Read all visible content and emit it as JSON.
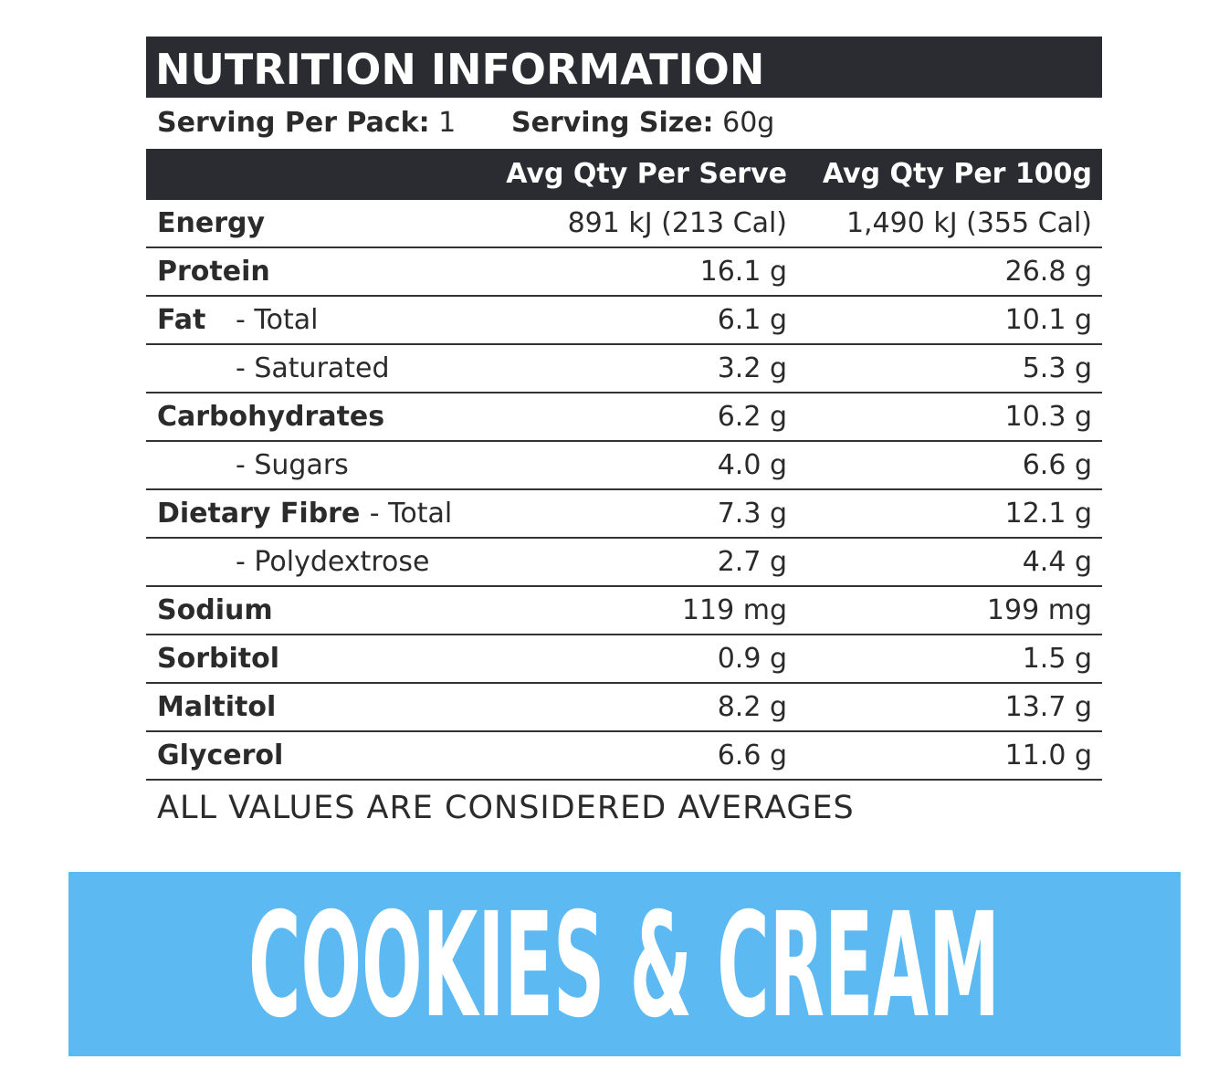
{
  "header": {
    "title": "NUTRITION INFORMATION"
  },
  "serving": {
    "per_pack_label": "Serving Per Pack:",
    "per_pack": "1",
    "size_label": "Serving Size:",
    "size": "60g"
  },
  "table": {
    "columns": [
      "Avg Qty Per Serve",
      "Avg Qty Per 100g"
    ],
    "rows": [
      {
        "name": "Energy",
        "serve": "891 kJ (213 Cal)",
        "per_100g": "1,490 kJ (355 Cal)"
      },
      {
        "name": "Protein",
        "serve": "16.1 g",
        "per_100g": "26.8 g"
      },
      {
        "name": "Fat",
        "sub": "- Total",
        "serve": "6.1 g",
        "per_100g": "10.1 g"
      },
      {
        "sub": "- Saturated",
        "serve": "3.2 g",
        "per_100g": "5.3 g"
      },
      {
        "name": "Carbohydrates",
        "serve": "6.2 g",
        "per_100g": "10.3 g"
      },
      {
        "sub": "- Sugars",
        "serve": "4.0 g",
        "per_100g": "6.6 g"
      },
      {
        "name": "Dietary Fibre",
        "sub": "- Total",
        "serve": "7.3 g",
        "per_100g": "12.1 g"
      },
      {
        "sub": "- Polydextrose",
        "serve": "2.7 g",
        "per_100g": "4.4 g"
      },
      {
        "name": "Sodium",
        "serve": "119 mg",
        "per_100g": "199 mg"
      },
      {
        "name": "Sorbitol",
        "serve": "0.9 g",
        "per_100g": "1.5 g"
      },
      {
        "name": "Maltitol",
        "serve": "8.2 g",
        "per_100g": "13.7 g"
      },
      {
        "name": "Glycerol",
        "serve": "6.6 g",
        "per_100g": "11.0 g"
      }
    ]
  },
  "footer": "ALL VALUES ARE CONSIDERED AVERAGES",
  "banner": "COOKIES & CREAM"
}
